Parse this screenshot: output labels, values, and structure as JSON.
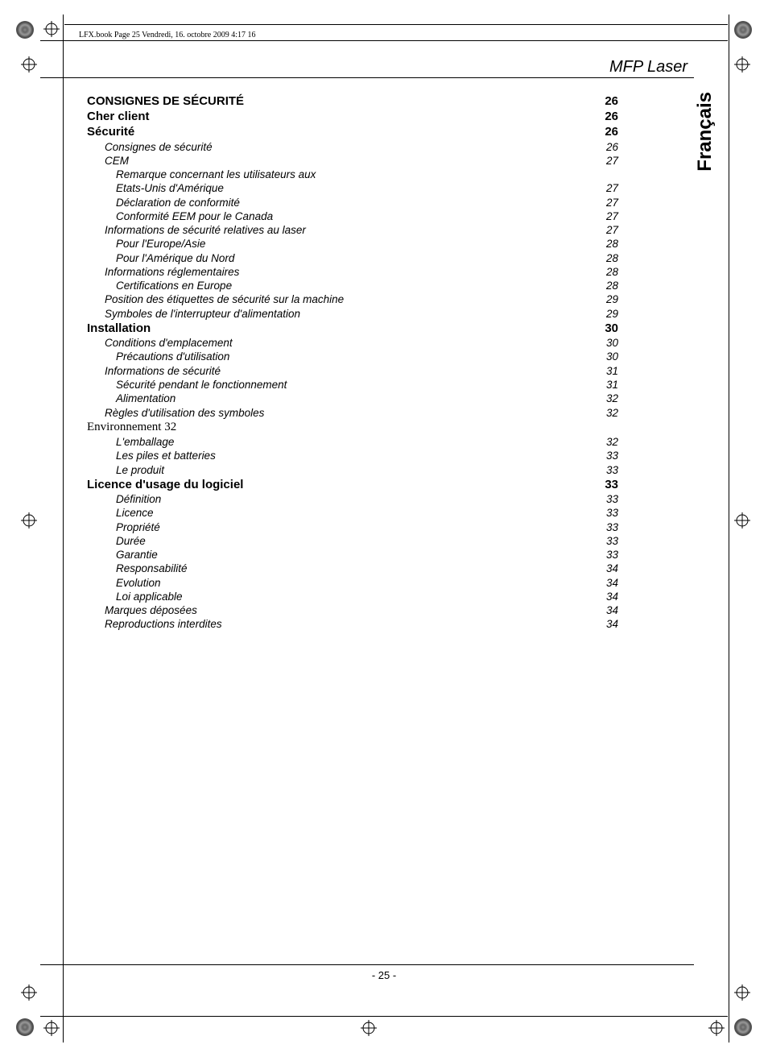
{
  "header_stamp": "LFX.book  Page 25  Vendredi, 16. octobre 2009  4:17 16",
  "doc_title": "MFP Laser",
  "language_tab": "Français",
  "page_footer": "- 25 -",
  "colors": {
    "text": "#000000",
    "background": "#ffffff"
  },
  "toc": [
    {
      "level": 0,
      "title": "CONSIGNES DE SÉCURITÉ",
      "page": "26"
    },
    {
      "level": 0,
      "title": "Cher client",
      "page": "26"
    },
    {
      "level": 0,
      "title": "Sécurité",
      "page": "26"
    },
    {
      "level": 1,
      "title": "Consignes de sécurité",
      "page": "26"
    },
    {
      "level": 1,
      "title": "CEM",
      "page": "27"
    },
    {
      "level": 2,
      "title": "Remarque concernant les utilisateurs aux",
      "page": ""
    },
    {
      "level": 2,
      "title": "Etats-Unis d'Amérique",
      "page": "27"
    },
    {
      "level": 2,
      "title": "Déclaration de conformité",
      "page": "27"
    },
    {
      "level": 2,
      "title": "Conformité EEM pour le Canada",
      "page": "27"
    },
    {
      "level": 1,
      "title": "Informations de sécurité relatives au laser",
      "page": "27"
    },
    {
      "level": 2,
      "title": "Pour l'Europe/Asie",
      "page": "28"
    },
    {
      "level": 2,
      "title": "Pour l'Amérique du Nord",
      "page": "28"
    },
    {
      "level": 1,
      "title": "Informations réglementaires",
      "page": "28"
    },
    {
      "level": 2,
      "title": "Certifications en Europe",
      "page": "28"
    },
    {
      "level": 1,
      "title": "Position des étiquettes de sécurité sur la machine",
      "page": "29"
    },
    {
      "level": 1,
      "title": "Symboles de l'interrupteur d'alimentation",
      "page": "29"
    },
    {
      "level": 0,
      "title": "Installation",
      "page": "30"
    },
    {
      "level": 1,
      "title": "Conditions d'emplacement",
      "page": "30"
    },
    {
      "level": 2,
      "title": "Précautions d'utilisation",
      "page": "30"
    },
    {
      "level": 1,
      "title": "Informations de sécurité",
      "page": "31"
    },
    {
      "level": 2,
      "title": "Sécurité pendant le fonctionnement",
      "page": "31"
    },
    {
      "level": 2,
      "title": "Alimentation",
      "page": "32"
    },
    {
      "level": 1,
      "title": "Règles d'utilisation des symboles",
      "page": "32"
    },
    {
      "level": -1,
      "title": "Environnement 32",
      "page": ""
    },
    {
      "level": 2,
      "title": "L'emballage",
      "page": "32"
    },
    {
      "level": 2,
      "title": "Les piles et batteries",
      "page": "33"
    },
    {
      "level": 2,
      "title": "Le produit",
      "page": "33"
    },
    {
      "level": 0,
      "title": "Licence d'usage du logiciel",
      "page": "33"
    },
    {
      "level": 2,
      "title": "Définition",
      "page": "33"
    },
    {
      "level": 2,
      "title": "Licence",
      "page": "33"
    },
    {
      "level": 2,
      "title": "Propriété",
      "page": "33"
    },
    {
      "level": 2,
      "title": "Durée",
      "page": "33"
    },
    {
      "level": 2,
      "title": "Garantie",
      "page": "33"
    },
    {
      "level": 2,
      "title": "Responsabilité",
      "page": "34"
    },
    {
      "level": 2,
      "title": "Evolution",
      "page": "34"
    },
    {
      "level": 2,
      "title": "Loi applicable",
      "page": "34"
    },
    {
      "level": 1,
      "title": "Marques déposées",
      "page": "34"
    },
    {
      "level": 1,
      "title": "Reproductions interdites",
      "page": "34"
    }
  ]
}
